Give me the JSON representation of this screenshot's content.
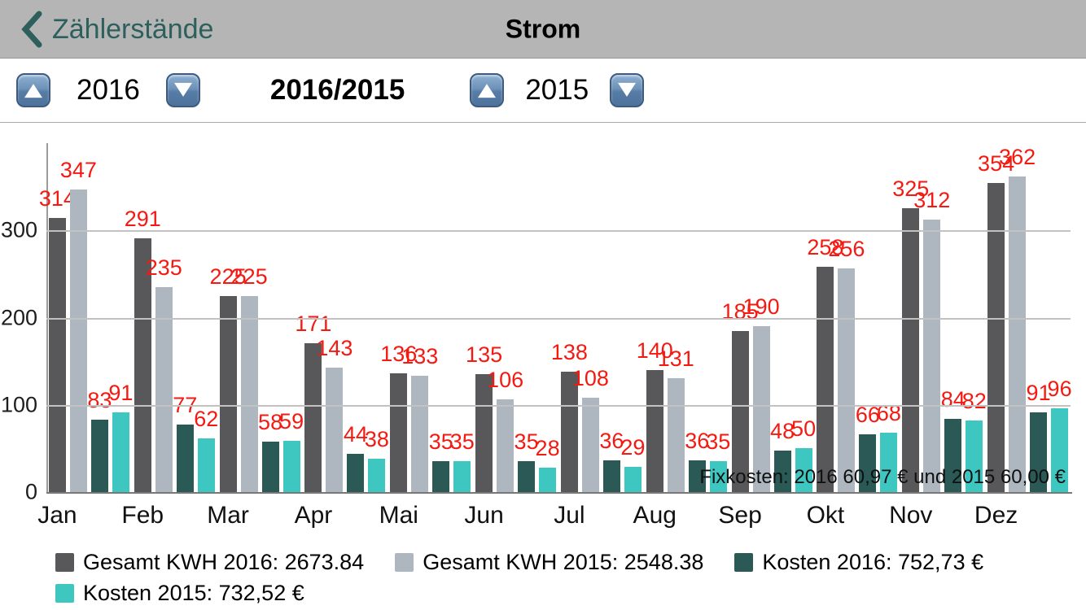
{
  "nav": {
    "back_label": "Zählerstände",
    "title": "Strom"
  },
  "controls": {
    "year_left": "2016",
    "compare_label": "2016/2015",
    "year_right": "2015"
  },
  "colors": {
    "nav_accent": "#2d5f5c",
    "value_label": "#f41a12",
    "kwh_2016": "#58585a",
    "kwh_2015": "#aeb7c0",
    "kosten_2016": "#2a5956",
    "kosten_2015": "#3ec7c0"
  },
  "chart_data": {
    "type": "bar",
    "categories": [
      "Jan",
      "Feb",
      "Mar",
      "Apr",
      "Mai",
      "Jun",
      "Jul",
      "Aug",
      "Sep",
      "Okt",
      "Nov",
      "Dez"
    ],
    "series": [
      {
        "name": "Gesamt KWH 2016: 2673.84",
        "color": "#58585a",
        "values": [
          314,
          291,
          225,
          171,
          136,
          135,
          138,
          140,
          185,
          258,
          325,
          354
        ]
      },
      {
        "name": "Gesamt KWH 2015: 2548.38",
        "color": "#aeb7c0",
        "values": [
          347,
          235,
          225,
          143,
          133,
          106,
          108,
          131,
          190,
          256,
          312,
          362
        ]
      },
      {
        "name": "Kosten 2016: 752,73 €",
        "color": "#2a5956",
        "values": [
          83,
          77,
          58,
          44,
          35,
          35,
          36,
          36,
          48,
          66,
          84,
          91
        ]
      },
      {
        "name": "Kosten 2015: 732,52 €",
        "color": "#3ec7c0",
        "values": [
          91,
          62,
          59,
          38,
          35,
          28,
          29,
          35,
          50,
          68,
          82,
          96
        ]
      }
    ],
    "ylim": [
      0,
      400
    ],
    "yticks": [
      0,
      100,
      200,
      300
    ],
    "grid": true,
    "legend_position": "bottom",
    "legend_rows": [
      [
        0,
        1,
        2
      ],
      [
        3
      ]
    ],
    "value_label_color": "#f41a12",
    "annotation": "Fixkosten: 2016 60,97 € und 2015 60,00 €"
  }
}
